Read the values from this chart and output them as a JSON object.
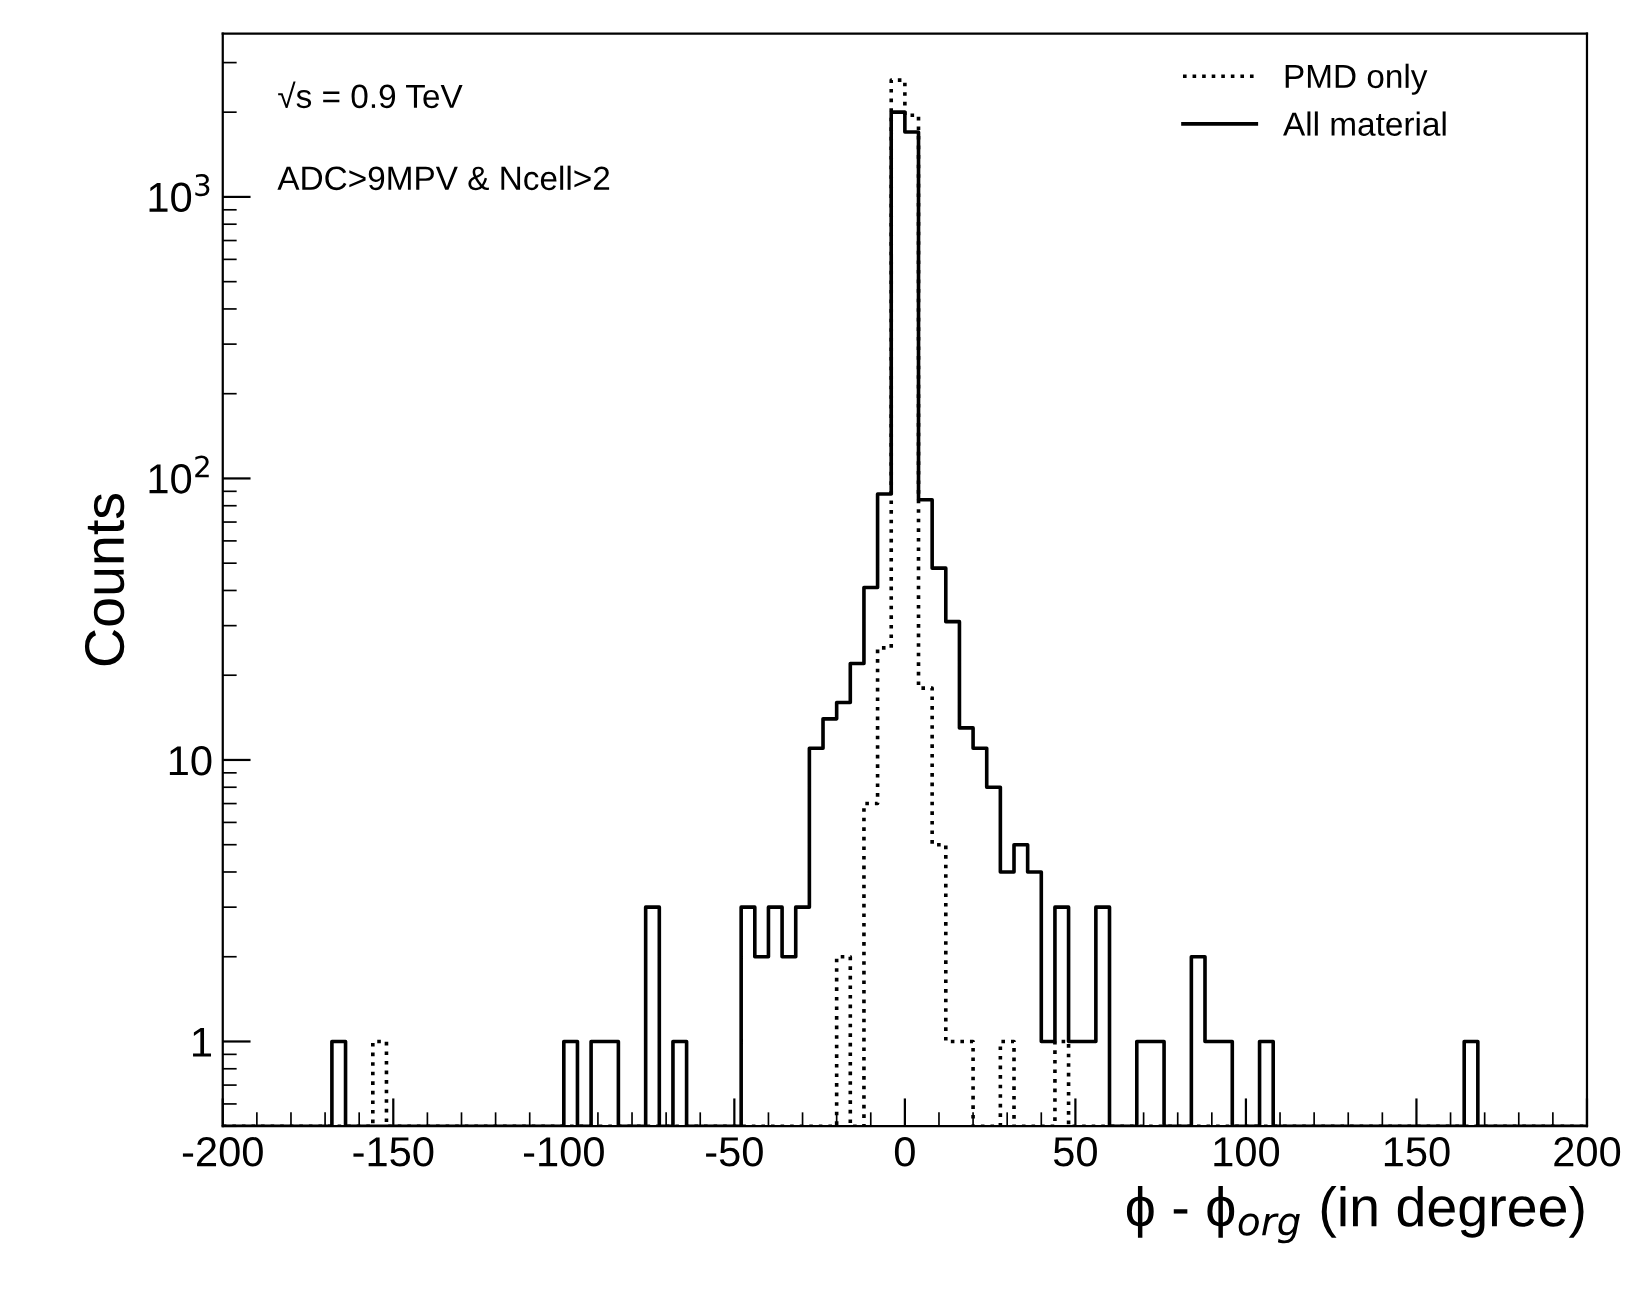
{
  "chart_data": {
    "type": "histogram",
    "xlabel": "ϕ - ϕ$_{org}$ (in degree)",
    "ylabel": "Counts",
    "annotations": [
      "√s = 0.9 TeV",
      "ADC>9MPV & Ncell>2"
    ],
    "bins": [
      -200,
      -196,
      -192,
      -188,
      -184,
      -180,
      -176,
      -172,
      -168,
      -164,
      -160,
      -156,
      -152,
      -148,
      -144,
      -140,
      -136,
      -132,
      -128,
      -124,
      -120,
      -116,
      -112,
      -108,
      -104,
      -100,
      -96,
      -92,
      -88,
      -84,
      -80,
      -76,
      -72,
      -68,
      -64,
      -60,
      -56,
      -52,
      -48,
      -44,
      -40,
      -36,
      -32,
      -28,
      -24,
      -20,
      -16,
      -12,
      -8,
      -4,
      0,
      4,
      8,
      12,
      16,
      20,
      24,
      28,
      32,
      36,
      40,
      44,
      48,
      52,
      56,
      60,
      64,
      68,
      72,
      76,
      80,
      84,
      88,
      92,
      96,
      100,
      104,
      108,
      112,
      116,
      120,
      124,
      128,
      132,
      136,
      140,
      144,
      148,
      152,
      156,
      160,
      164,
      168,
      172,
      176,
      180,
      184,
      188,
      192,
      196,
      200
    ],
    "series": [
      {
        "name": "PMD only",
        "color": "#000000",
        "line_style": "dotted",
        "values": [
          null,
          null,
          null,
          null,
          null,
          null,
          null,
          null,
          null,
          null,
          null,
          1,
          null,
          null,
          null,
          null,
          null,
          null,
          null,
          null,
          null,
          null,
          null,
          null,
          null,
          null,
          null,
          null,
          null,
          null,
          null,
          null,
          null,
          null,
          null,
          null,
          null,
          null,
          null,
          null,
          null,
          null,
          null,
          null,
          null,
          2,
          null,
          7,
          25,
          2600,
          1950,
          18,
          5,
          1,
          1,
          null,
          null,
          1,
          null,
          null,
          null,
          1,
          null,
          null,
          null,
          null,
          null,
          null,
          null,
          null,
          null,
          null,
          null,
          null,
          null,
          null,
          null,
          null,
          null,
          null,
          null,
          null,
          null,
          null,
          null,
          null,
          null,
          null,
          null,
          null,
          null,
          null,
          null,
          null,
          null,
          null,
          null,
          null,
          null,
          null
        ]
      },
      {
        "name": "All material",
        "color": "#000000",
        "line_style": "solid",
        "values": [
          null,
          null,
          null,
          null,
          null,
          null,
          null,
          null,
          1,
          null,
          null,
          null,
          null,
          null,
          null,
          null,
          null,
          null,
          null,
          null,
          null,
          null,
          null,
          null,
          null,
          1,
          null,
          1,
          1,
          null,
          null,
          3,
          null,
          1,
          null,
          null,
          null,
          null,
          3,
          2,
          3,
          2,
          3,
          11,
          14,
          16,
          22,
          41,
          88,
          2000,
          1700,
          84,
          48,
          31,
          13,
          11,
          8,
          4,
          5,
          4,
          1,
          3,
          1,
          1,
          3,
          null,
          null,
          1,
          1,
          null,
          null,
          2,
          1,
          1,
          null,
          null,
          1,
          null,
          null,
          null,
          null,
          null,
          null,
          null,
          null,
          null,
          null,
          null,
          null,
          null,
          null,
          1,
          null,
          null,
          null,
          null,
          null,
          null,
          null,
          null
        ]
      }
    ],
    "log": "y",
    "xlim": [
      -200,
      200
    ],
    "xticks": [
      -200,
      -150,
      -100,
      -50,
      0,
      50,
      100,
      150,
      200
    ],
    "ylim": [
      0.5,
      3800
    ],
    "yticks": [
      1,
      10,
      {
        "value": 100,
        "label": "10$^{2}$"
      },
      {
        "value": 1000,
        "label": "10$^{3}$"
      }
    ],
    "grid": false,
    "legend": "top right"
  }
}
